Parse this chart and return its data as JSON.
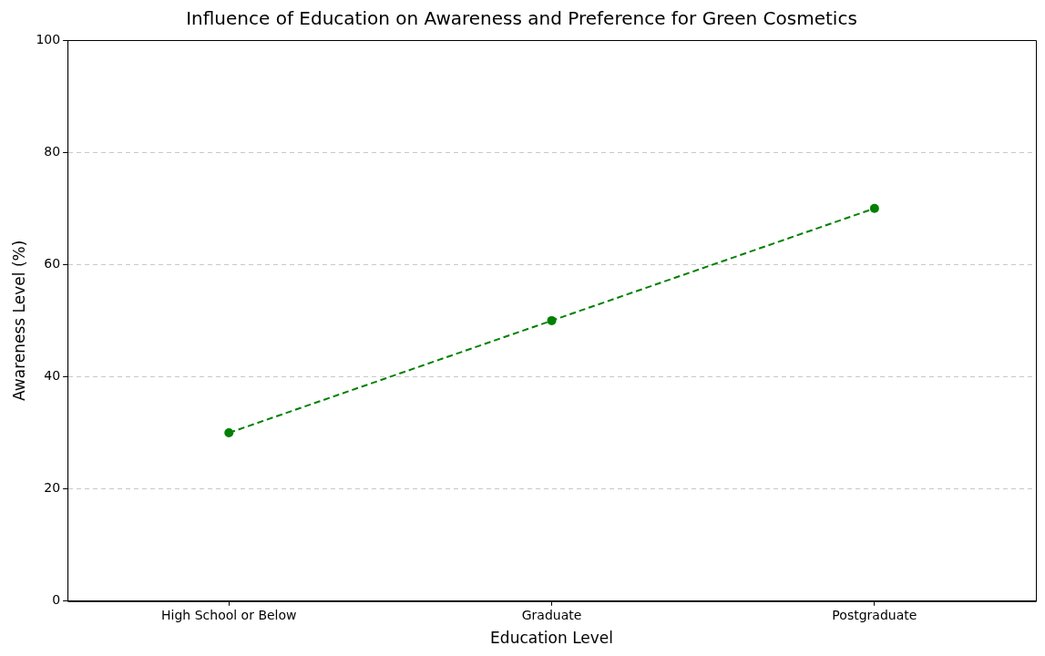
{
  "chart_data": {
    "type": "line",
    "title": "Influence of Education on Awareness and Preference for Green Cosmetics",
    "xlabel": "Education Level",
    "ylabel": "Awareness Level (%)",
    "categories": [
      "High School or Below",
      "Graduate",
      "Postgraduate"
    ],
    "series": [
      {
        "color": "#008000",
        "values": [
          30,
          50,
          70
        ]
      }
    ],
    "ylim": [
      0,
      100
    ],
    "yticks": [
      0,
      20,
      40,
      60,
      80,
      100
    ],
    "grid": "y",
    "legend": false,
    "marker": "circle",
    "line_style": "dashed"
  }
}
